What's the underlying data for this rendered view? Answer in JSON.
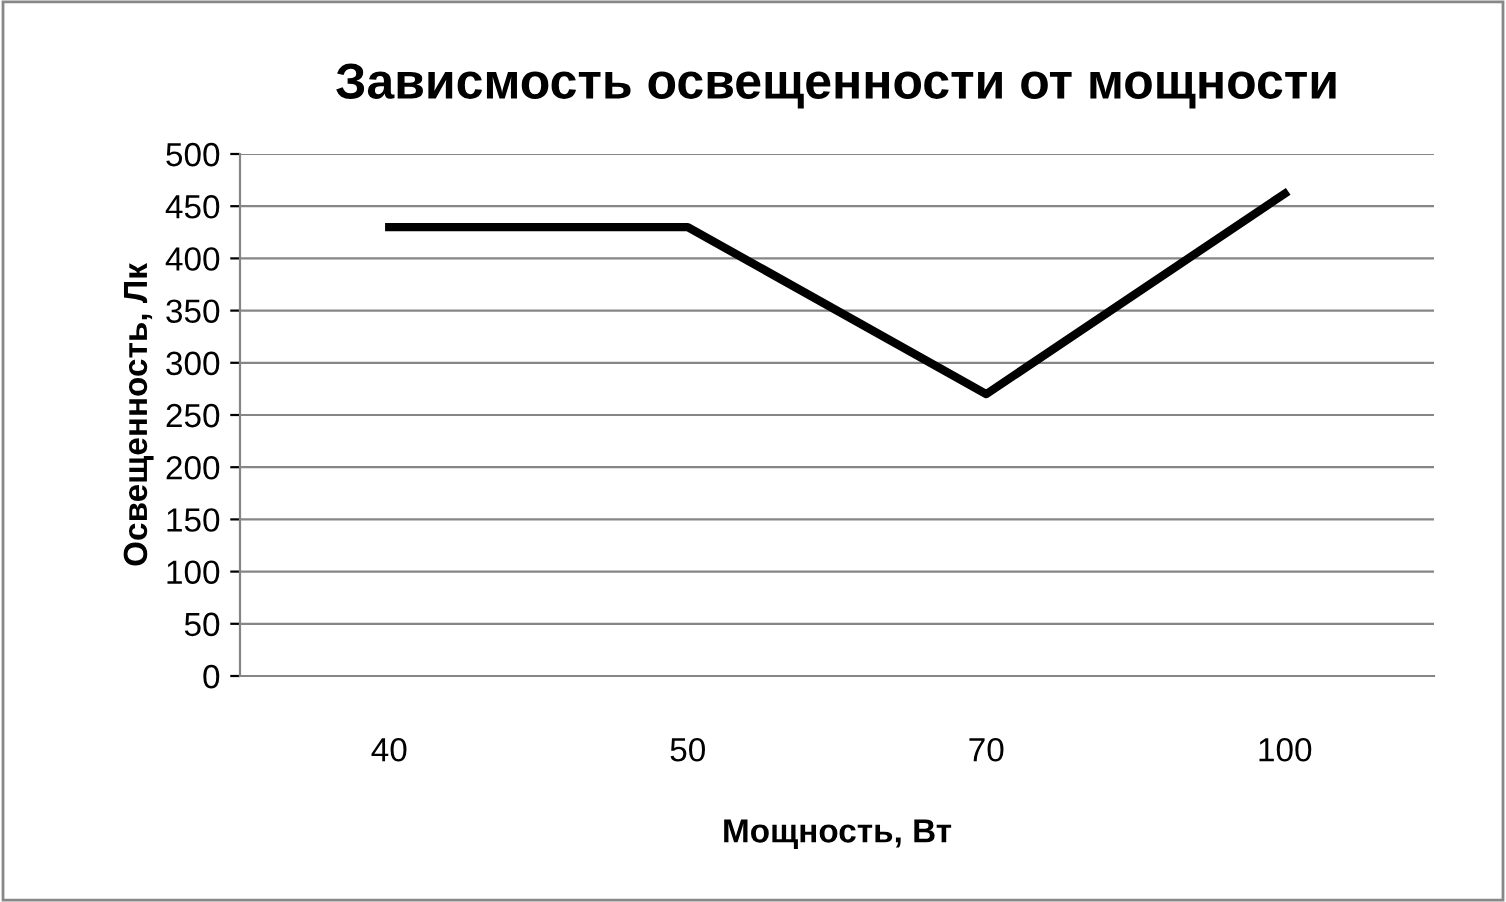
{
  "chart_data": {
    "type": "line",
    "title": "Зависмость освещенности от мощности",
    "xlabel": "Мощность, Вт",
    "ylabel": "Освещенность, Лк",
    "categories": [
      "40",
      "50",
      "70",
      "100"
    ],
    "series": [
      {
        "color": "#000000",
        "values": [
          430,
          430,
          270,
          462
        ]
      }
    ],
    "ylim": [
      0,
      500
    ],
    "yticks": [
      0,
      50,
      100,
      150,
      200,
      250,
      300,
      350,
      400,
      450,
      500
    ],
    "grid": "y",
    "legend": false,
    "marker": "none",
    "line_style": "solid"
  }
}
